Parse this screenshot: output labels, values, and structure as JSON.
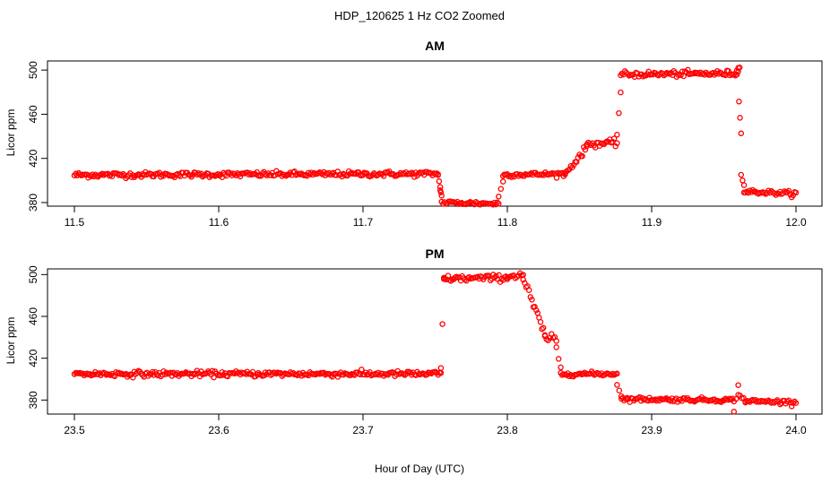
{
  "figure": {
    "title": "HDP_120625  1 Hz CO2 Zoomed",
    "xlabel": "Hour of Day (UTC)",
    "point_color": "#ff0000"
  },
  "chart_data": [
    {
      "type": "scatter",
      "title": "AM",
      "ylabel": "Licor ppm",
      "xlim": [
        11.5,
        12.0
      ],
      "ylim": [
        380,
        505
      ],
      "xticks": [
        "11.5",
        "11.6",
        "11.7",
        "11.8",
        "11.9",
        "12.0"
      ],
      "yticks": [
        "380",
        "420",
        "460",
        "500"
      ],
      "segments": [
        {
          "x": [
            11.5,
            11.752
          ],
          "y": [
            405,
            406
          ],
          "noise": 1.2
        },
        {
          "x": [
            11.752,
            11.7535
          ],
          "y": [
            405,
            394
          ],
          "noise": 0.5
        },
        {
          "x": [
            11.7535,
            11.7545
          ],
          "y": [
            392,
            386
          ],
          "noise": 0.5
        },
        {
          "x": [
            11.7545,
            11.794
          ],
          "y": [
            380,
            379
          ],
          "noise": 1.0
        },
        {
          "x": [
            11.794,
            11.797
          ],
          "y": [
            385,
            400
          ],
          "noise": 0.8
        },
        {
          "x": [
            11.797,
            11.84
          ],
          "y": [
            405,
            406
          ],
          "noise": 1.0
        },
        {
          "x": [
            11.84,
            11.855
          ],
          "y": [
            406,
            430
          ],
          "noise": 1.5
        },
        {
          "x": [
            11.855,
            11.876
          ],
          "y": [
            433,
            434
          ],
          "noise": 1.5
        },
        {
          "x": [
            11.876,
            11.8785
          ],
          "y": [
            442,
            480
          ],
          "noise": 1.0
        },
        {
          "x": [
            11.8785,
            11.96
          ],
          "y": [
            496,
            497
          ],
          "noise": 1.3
        },
        {
          "x": [
            11.959,
            11.961
          ],
          "y": [
            500,
            503
          ],
          "noise": 0.5
        },
        {
          "x": [
            11.9605,
            11.962
          ],
          "y": [
            472,
            445
          ],
          "noise": 0.8
        },
        {
          "x": [
            11.962,
            11.964
          ],
          "y": [
            405,
            395
          ],
          "noise": 0.8
        },
        {
          "x": [
            11.964,
            12.0
          ],
          "y": [
            390,
            388
          ],
          "noise": 1.0
        }
      ]
    },
    {
      "type": "scatter",
      "title": "PM",
      "ylabel": "Licor ppm",
      "xlim": [
        23.5,
        24.0
      ],
      "ylim": [
        370,
        502
      ],
      "xticks": [
        "23.5",
        "23.6",
        "23.7",
        "23.8",
        "23.9",
        "24.0"
      ],
      "yticks": [
        "380",
        "420",
        "460",
        "500"
      ],
      "segments": [
        {
          "x": [
            23.5,
            23.754
          ],
          "y": [
            405,
            405
          ],
          "noise": 1.3
        },
        {
          "x": [
            23.754,
            23.756
          ],
          "y": [
            410,
            495
          ],
          "noise": 1.0
        },
        {
          "x": [
            23.756,
            23.8
          ],
          "y": [
            496,
            497
          ],
          "noise": 1.5
        },
        {
          "x": [
            23.8,
            23.811
          ],
          "y": [
            498,
            500
          ],
          "noise": 1.5
        },
        {
          "x": [
            23.811,
            23.826
          ],
          "y": [
            496,
            442
          ],
          "noise": 2.5
        },
        {
          "x": [
            23.826,
            23.834
          ],
          "y": [
            440,
            437
          ],
          "noise": 2.0
        },
        {
          "x": [
            23.834,
            23.837
          ],
          "y": [
            430,
            410
          ],
          "noise": 1.0
        },
        {
          "x": [
            23.837,
            23.876
          ],
          "y": [
            405,
            405
          ],
          "noise": 1.0
        },
        {
          "x": [
            23.876,
            23.879
          ],
          "y": [
            395,
            385
          ],
          "noise": 0.8
        },
        {
          "x": [
            23.879,
            23.957
          ],
          "y": [
            381,
            380
          ],
          "noise": 1.0
        },
        {
          "x": [
            23.957,
            23.96
          ],
          "y": [
            372,
            392
          ],
          "noise": 1.5
        },
        {
          "x": [
            23.96,
            23.965
          ],
          "y": [
            385,
            380
          ],
          "noise": 1.0
        },
        {
          "x": [
            23.965,
            24.0
          ],
          "y": [
            379,
            378
          ],
          "noise": 1.0
        }
      ]
    }
  ]
}
